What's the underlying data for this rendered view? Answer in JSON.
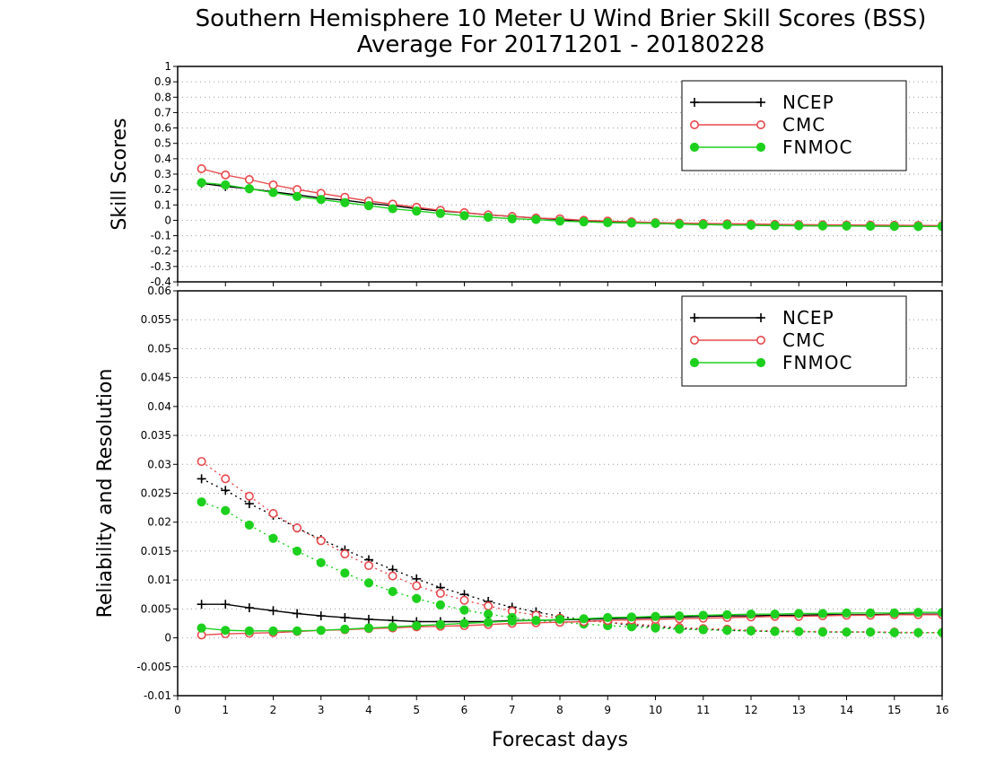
{
  "title_line1": "Southern Hemisphere 10 Meter U Wind Brier Skill Scores (BSS)",
  "title_line2": "Average For 20171201 - 20180228",
  "colors": {
    "NCEP": "#000000",
    "CMC": "#e8484c",
    "FNMOC": "#1ed01e"
  },
  "chart_data": [
    {
      "type": "line",
      "ylabel": "Skill Scores",
      "ylim": [
        -0.4,
        1
      ],
      "yticks": [
        "-0.4",
        "-0.3",
        "-0.2",
        "-0.1",
        "0",
        "0.1",
        "0.2",
        "0.3",
        "0.4",
        "0.5",
        "0.6",
        "0.7",
        "0.8",
        "0.9",
        "1"
      ],
      "grid": true,
      "legend_position": "top-right",
      "legend": [
        "NCEP",
        "CMC",
        "FNMOC"
      ],
      "x": [
        0.5,
        1,
        1.5,
        2,
        2.5,
        3,
        3.5,
        4,
        4.5,
        5,
        5.5,
        6,
        6.5,
        7,
        7.5,
        8,
        8.5,
        9,
        9.5,
        10,
        10.5,
        11,
        11.5,
        12,
        12.5,
        13,
        13.5,
        14,
        14.5,
        15,
        15.5,
        16
      ],
      "series": [
        {
          "name": "NCEP",
          "values": [
            0.24,
            0.22,
            0.205,
            0.185,
            0.165,
            0.145,
            0.13,
            0.11,
            0.095,
            0.075,
            0.06,
            0.05,
            0.035,
            0.025,
            0.015,
            0.005,
            -0.005,
            -0.01,
            -0.015,
            -0.02,
            -0.025,
            -0.028,
            -0.03,
            -0.032,
            -0.034,
            -0.035,
            -0.036,
            -0.037,
            -0.038,
            -0.039,
            -0.04,
            -0.04
          ]
        },
        {
          "name": "CMC",
          "values": [
            0.335,
            0.295,
            0.265,
            0.23,
            0.2,
            0.175,
            0.15,
            0.125,
            0.105,
            0.085,
            0.065,
            0.05,
            0.035,
            0.025,
            0.015,
            0.01,
            0.0,
            -0.005,
            -0.01,
            -0.015,
            -0.018,
            -0.02,
            -0.022,
            -0.024,
            -0.026,
            -0.028,
            -0.029,
            -0.03,
            -0.031,
            -0.032,
            -0.033,
            -0.034
          ]
        },
        {
          "name": "FNMOC",
          "values": [
            0.245,
            0.23,
            0.205,
            0.18,
            0.155,
            0.135,
            0.115,
            0.095,
            0.075,
            0.06,
            0.045,
            0.03,
            0.02,
            0.01,
            0.005,
            -0.005,
            -0.01,
            -0.015,
            -0.018,
            -0.02,
            -0.025,
            -0.028,
            -0.03,
            -0.032,
            -0.034,
            -0.035,
            -0.036,
            -0.037,
            -0.038,
            -0.039,
            -0.04,
            -0.04
          ]
        }
      ]
    },
    {
      "type": "line",
      "ylabel": "Reliability and Resolution",
      "xlabel": "Forecast days",
      "ylim": [
        -0.01,
        0.06
      ],
      "xlim": [
        0,
        16
      ],
      "xticks": [
        "0",
        "1",
        "2",
        "3",
        "4",
        "5",
        "6",
        "7",
        "8",
        "9",
        "10",
        "11",
        "12",
        "13",
        "14",
        "15",
        "16"
      ],
      "yticks": [
        "-0.01",
        "-0.005",
        "0",
        "0.005",
        "0.01",
        "0.015",
        "0.02",
        "0.025",
        "0.03",
        "0.035",
        "0.04",
        "0.045",
        "0.05",
        "0.055",
        "0.06"
      ],
      "grid": true,
      "legend_position": "top-right",
      "legend": [
        "NCEP",
        "CMC",
        "FNMOC"
      ],
      "x": [
        0.5,
        1,
        1.5,
        2,
        2.5,
        3,
        3.5,
        4,
        4.5,
        5,
        5.5,
        6,
        6.5,
        7,
        7.5,
        8,
        8.5,
        9,
        9.5,
        10,
        10.5,
        11,
        11.5,
        12,
        12.5,
        13,
        13.5,
        14,
        14.5,
        15,
        15.5,
        16
      ],
      "series": [
        {
          "name": "NCEP",
          "kind": "reliability",
          "style": "dotted",
          "values": [
            0.0275,
            0.0255,
            0.0232,
            0.0212,
            0.019,
            0.017,
            0.0152,
            0.0135,
            0.0118,
            0.0102,
            0.0087,
            0.0075,
            0.0063,
            0.0053,
            0.0045,
            0.0037,
            0.0031,
            0.0027,
            0.0022,
            0.0019,
            0.0016,
            0.0015,
            0.0013,
            0.0012,
            0.0011,
            0.0011,
            0.001,
            0.001,
            0.001,
            0.0009,
            0.0009,
            0.0009
          ]
        },
        {
          "name": "CMC",
          "kind": "reliability",
          "style": "dotted",
          "values": [
            0.0305,
            0.0275,
            0.0245,
            0.0215,
            0.019,
            0.0168,
            0.0145,
            0.0125,
            0.0107,
            0.009,
            0.0077,
            0.0065,
            0.0055,
            0.0046,
            0.0039,
            0.0034,
            0.003,
            0.0027,
            0.0024,
            0.0021,
            0.0018,
            0.0016,
            0.0015,
            0.0013,
            0.0012,
            0.0011,
            0.0011,
            0.001,
            0.001,
            0.001,
            0.0009,
            0.0009
          ]
        },
        {
          "name": "FNMOC",
          "kind": "reliability",
          "style": "dotted",
          "values": [
            0.0235,
            0.022,
            0.0195,
            0.0172,
            0.015,
            0.013,
            0.0112,
            0.0095,
            0.008,
            0.0068,
            0.0057,
            0.0048,
            0.0041,
            0.0035,
            0.003,
            0.0027,
            0.0024,
            0.0021,
            0.0019,
            0.0017,
            0.0015,
            0.0014,
            0.0013,
            0.0012,
            0.0011,
            0.0011,
            0.001,
            0.001,
            0.001,
            0.0009,
            0.0009,
            0.0009
          ]
        },
        {
          "name": "NCEP",
          "kind": "resolution",
          "style": "solid",
          "values": [
            0.0058,
            0.0058,
            0.0052,
            0.0047,
            0.0042,
            0.0038,
            0.0035,
            0.0032,
            0.003,
            0.0028,
            0.0028,
            0.0028,
            0.0028,
            0.003,
            0.003,
            0.0031,
            0.0032,
            0.0033,
            0.0034,
            0.0035,
            0.0036,
            0.0037,
            0.0038,
            0.0038,
            0.0039,
            0.0039,
            0.004,
            0.004,
            0.004,
            0.0041,
            0.0041,
            0.0041
          ]
        },
        {
          "name": "CMC",
          "kind": "resolution",
          "style": "solid",
          "values": [
            0.0005,
            0.0007,
            0.0008,
            0.0009,
            0.0011,
            0.0013,
            0.0014,
            0.0016,
            0.0017,
            0.0019,
            0.002,
            0.0021,
            0.0023,
            0.0025,
            0.0026,
            0.0027,
            0.0028,
            0.003,
            0.0031,
            0.0032,
            0.0033,
            0.0034,
            0.0035,
            0.0036,
            0.0037,
            0.0037,
            0.0038,
            0.0039,
            0.0039,
            0.004,
            0.004,
            0.004
          ]
        },
        {
          "name": "FNMOC",
          "kind": "resolution",
          "style": "solid",
          "values": [
            0.0017,
            0.0013,
            0.0012,
            0.0012,
            0.0012,
            0.0013,
            0.0015,
            0.0017,
            0.0019,
            0.0021,
            0.0023,
            0.0025,
            0.0027,
            0.0029,
            0.003,
            0.0032,
            0.0033,
            0.0035,
            0.0036,
            0.0037,
            0.0038,
            0.0039,
            0.004,
            0.0041,
            0.0041,
            0.0042,
            0.0042,
            0.0043,
            0.0043,
            0.0043,
            0.0044,
            0.0044
          ]
        }
      ]
    }
  ]
}
